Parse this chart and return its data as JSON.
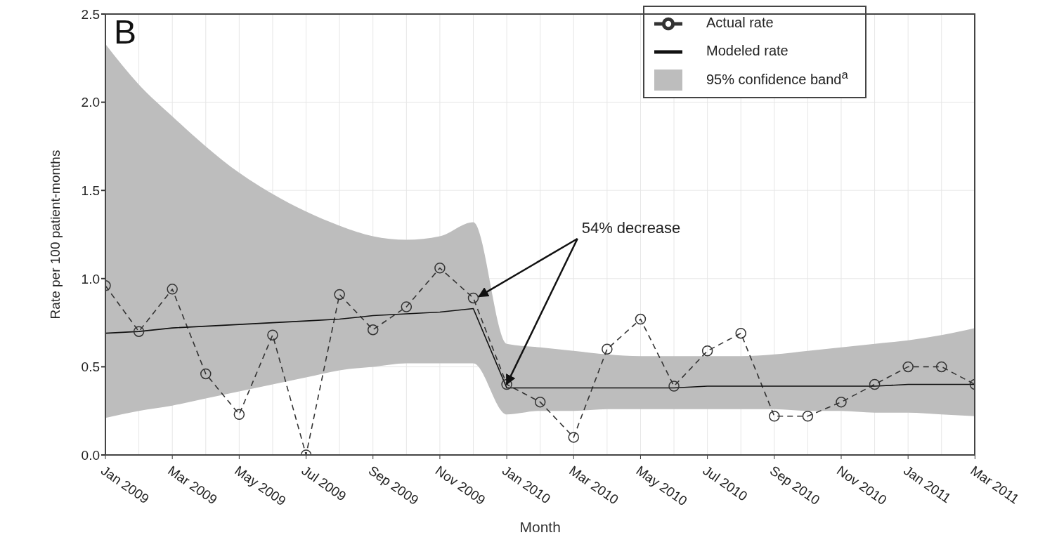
{
  "chart_data": {
    "type": "line",
    "xlabel": "Month",
    "ylabel": "Rate per 100 patient-months",
    "categories": [
      "Jan 2009",
      null,
      "Mar 2009",
      null,
      "May 2009",
      null,
      "Jul 2009",
      null,
      "Sep 2009",
      null,
      "Nov 2009",
      null,
      "Jan 2010",
      null,
      "Mar 2010",
      null,
      "May 2010",
      null,
      "Jul 2010",
      null,
      "Sep 2010",
      null,
      "Nov 2010",
      null,
      "Jan 2011",
      null,
      "Mar 2011"
    ],
    "series": [
      {
        "name": "Actual rate",
        "type": "line",
        "color": "#333333",
        "line_style": "dashed",
        "marker": "circle",
        "values": [
          0.96,
          0.7,
          0.94,
          0.46,
          0.23,
          0.68,
          0.0,
          0.91,
          0.71,
          0.84,
          1.06,
          0.89,
          0.4,
          0.3,
          0.1,
          0.6,
          0.77,
          0.39,
          0.59,
          0.69,
          0.22,
          0.22,
          0.3,
          0.4,
          0.5,
          0.5,
          0.4
        ]
      },
      {
        "name": "Modeled rate",
        "type": "line",
        "color": "#111111",
        "line_style": "solid",
        "marker": "none",
        "values": [
          0.69,
          0.7,
          0.72,
          0.73,
          0.74,
          0.75,
          0.76,
          0.77,
          0.79,
          0.8,
          0.81,
          0.83,
          0.38,
          0.38,
          0.38,
          0.38,
          0.38,
          0.38,
          0.39,
          0.39,
          0.39,
          0.39,
          0.39,
          0.39,
          0.4,
          0.4,
          0.4
        ]
      },
      {
        "name": "95% confidence band$^{a}$",
        "type": "area",
        "color": "#bdbdbd",
        "values": [
          null,
          null,
          null,
          null,
          null,
          null,
          null,
          null,
          null,
          null,
          null,
          null,
          null,
          null,
          null,
          null,
          null,
          null,
          null,
          null,
          null,
          null,
          null,
          null,
          null,
          null,
          null
        ],
        "lower": [
          0.21,
          0.25,
          0.28,
          0.32,
          0.36,
          0.4,
          0.44,
          0.48,
          0.5,
          0.52,
          0.52,
          0.52,
          0.23,
          0.25,
          0.25,
          0.26,
          0.26,
          0.26,
          0.26,
          0.26,
          0.26,
          0.25,
          0.25,
          0.24,
          0.24,
          0.23,
          0.22
        ],
        "upper": [
          2.33,
          2.1,
          1.92,
          1.75,
          1.6,
          1.48,
          1.38,
          1.3,
          1.24,
          1.22,
          1.24,
          1.32,
          0.63,
          0.61,
          0.59,
          0.57,
          0.56,
          0.56,
          0.56,
          0.56,
          0.57,
          0.59,
          0.61,
          0.63,
          0.65,
          0.68,
          0.72
        ]
      }
    ],
    "ylim": [
      0,
      2.5
    ],
    "yticks": [
      {
        "value": 0,
        "label": "0.0"
      },
      {
        "value": 0.5,
        "label": "0.5"
      },
      {
        "value": 1,
        "label": "1.0"
      },
      {
        "value": 1.5,
        "label": "1.5"
      },
      {
        "value": 2,
        "label": "2.0"
      },
      {
        "value": 2.5,
        "label": "2.5"
      }
    ],
    "grid": true,
    "legend": "top right",
    "annotations": [
      "B",
      {
        "text": "54% decrease",
        "x": "Jan 2010",
        "y": 0.4
      }
    ]
  }
}
